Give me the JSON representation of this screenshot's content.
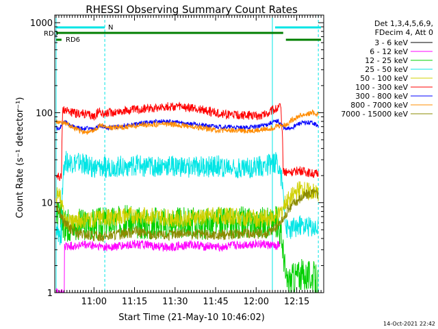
{
  "chart_data": {
    "type": "line",
    "title": "RHESSI Observing Summary Count Rates",
    "xlabel": "Start Time (21-May-10 10:46:02)",
    "ylabel": "Count Rate (s⁻¹ detector⁻¹)",
    "xscale": "time (minutes after 10:46:02)",
    "yscale": "log",
    "xlim": [
      0,
      98
    ],
    "ylim": [
      1,
      1000
    ],
    "grid": false,
    "legend_placement": "right, outside plot",
    "legend_header": [
      "Det 1,3,4,5,6,9,",
      "FDecim 4, Att 0"
    ],
    "x_ticks": [
      {
        "label": "11:00",
        "x": 14
      },
      {
        "label": "11:15",
        "x": 29
      },
      {
        "label": "11:30",
        "x": 44
      },
      {
        "label": "11:45",
        "x": 59
      },
      {
        "label": "12:00",
        "x": 74
      },
      {
        "label": "12:15",
        "x": 89
      }
    ],
    "y_ticks": [
      {
        "label": "1",
        "y": 1
      },
      {
        "label": "10",
        "y": 10
      },
      {
        "label": "100",
        "y": 100
      },
      {
        "label": "1000",
        "y": 1000
      }
    ],
    "flag_bars": [
      {
        "name": "N",
        "color": "#00e5e5",
        "segments": [
          [
            0,
            18
          ],
          [
            81,
            98
          ]
        ]
      },
      {
        "name": "RD0",
        "color": "#007f00",
        "segments": [
          [
            0,
            84
          ]
        ]
      },
      {
        "name": "RD6",
        "color": "#007f00",
        "segments": [
          [
            0,
            2
          ],
          [
            85,
            98
          ]
        ]
      }
    ],
    "markers": [
      {
        "x": 0,
        "color": "#00e5e5",
        "style": "solid"
      },
      {
        "x": 80,
        "color": "#00e5e5",
        "style": "solid"
      },
      {
        "x": 18,
        "color": "#00e5e5",
        "style": "dashed"
      },
      {
        "x": 97,
        "color": "#00e5e5",
        "style": "dashed"
      }
    ],
    "series": [
      {
        "name": "3 - 6 keV",
        "color": "#000000",
        "x": [],
        "y": []
      },
      {
        "name": "6 - 12 keV",
        "color": "#ff00ff",
        "x": [
          0,
          2,
          3,
          3.1,
          5,
          10,
          15,
          20,
          25,
          30,
          35,
          40,
          45,
          50,
          55,
          60,
          65,
          70,
          75,
          80,
          83
        ],
        "y": [
          1,
          1,
          1,
          3.2,
          3.3,
          3.4,
          3.3,
          3.2,
          3.3,
          3.5,
          3.3,
          3.2,
          3.3,
          3.4,
          3.3,
          3.2,
          3.3,
          3.4,
          3.5,
          3.3,
          3.4
        ]
      },
      {
        "name": "12 - 25 keV",
        "color": "#00d000",
        "x": [
          0,
          2,
          3,
          5,
          10,
          15,
          20,
          25,
          30,
          35,
          40,
          45,
          50,
          55,
          60,
          65,
          70,
          75,
          80,
          82,
          85,
          90,
          95,
          97
        ],
        "y": [
          7.5,
          6.5,
          5.5,
          5.6,
          5.8,
          6.0,
          6.2,
          6.3,
          6.0,
          5.8,
          6.0,
          6.1,
          6.0,
          5.8,
          5.9,
          6.0,
          6.1,
          6.0,
          5.9,
          6.2,
          1.3,
          1.6,
          1.5,
          1.3
        ]
      },
      {
        "name": "25 - 50 keV",
        "color": "#00e5e5",
        "x": [
          0,
          2,
          3,
          5,
          10,
          15,
          20,
          25,
          30,
          35,
          40,
          45,
          50,
          55,
          60,
          65,
          70,
          75,
          80,
          82,
          85,
          90,
          95,
          97
        ],
        "y": [
          4.5,
          4.4,
          29,
          28,
          27,
          24,
          25,
          25.5,
          26,
          25,
          25.5,
          25,
          24.5,
          25,
          25.5,
          25,
          24.5,
          25,
          27,
          29,
          5.0,
          5.5,
          5.3,
          5.0
        ]
      },
      {
        "name": "50 - 100 keV",
        "color": "#d0d000",
        "x": [
          0,
          2,
          3,
          5,
          10,
          15,
          20,
          25,
          30,
          35,
          40,
          45,
          50,
          55,
          60,
          65,
          70,
          75,
          80,
          82,
          85,
          90,
          95,
          97
        ],
        "y": [
          12,
          11,
          6,
          6.2,
          6.4,
          6.6,
          6.8,
          7,
          7.2,
          7,
          6.8,
          6.6,
          6.8,
          7,
          7.2,
          7,
          6.8,
          6.6,
          6.8,
          7,
          10,
          14,
          13,
          12.5
        ]
      },
      {
        "name": "100 - 300 keV",
        "color": "#ff0000",
        "x": [
          0,
          2,
          2.5,
          3,
          5,
          7,
          10,
          12,
          14,
          16,
          18,
          20,
          25,
          30,
          35,
          40,
          45,
          50,
          55,
          60,
          65,
          70,
          75,
          78,
          80,
          81,
          82,
          83,
          84,
          85,
          88,
          90,
          95,
          97
        ],
        "y": [
          20,
          19,
          110,
          108,
          103,
          98,
          97,
          94,
          90,
          104,
          96,
          100,
          104,
          108,
          113,
          117,
          116,
          113,
          106,
          98,
          94,
          93,
          92,
          98,
          107,
          110,
          112,
          118,
          23,
          22,
          22,
          23,
          21,
          21
        ]
      },
      {
        "name": "300 - 800 keV",
        "color": "#0000ff",
        "x": [
          0,
          1,
          3,
          5,
          7,
          10,
          12,
          14,
          16,
          18,
          20,
          25,
          30,
          35,
          40,
          45,
          50,
          55,
          60,
          65,
          70,
          75,
          78,
          80,
          82,
          85,
          88,
          90,
          95,
          97
        ],
        "y": [
          68,
          66,
          80,
          74,
          68,
          66,
          67,
          65,
          72,
          68,
          68,
          72,
          75,
          79,
          80,
          78,
          75,
          72,
          70,
          69,
          68,
          71,
          74,
          78,
          81,
          65,
          70,
          76,
          78,
          70
        ]
      },
      {
        "name": "800 - 7000 keV",
        "color": "#ff8c00",
        "x": [
          0,
          1,
          3,
          5,
          7,
          10,
          12,
          14,
          16,
          18,
          20,
          25,
          30,
          35,
          40,
          45,
          50,
          55,
          60,
          65,
          70,
          75,
          78,
          80,
          82,
          85,
          88,
          90,
          95,
          97
        ],
        "y": [
          80,
          78,
          77,
          72,
          66,
          62,
          60,
          63,
          72,
          70,
          68,
          69,
          72,
          74,
          75,
          73,
          70,
          67,
          64,
          63,
          63,
          64,
          66,
          68,
          72,
          73,
          86,
          92,
          100,
          95
        ]
      },
      {
        "name": "7000 - 15000 keV",
        "color": "#8b8b00",
        "x": [
          0,
          1,
          2,
          3,
          5,
          8,
          10,
          14,
          18,
          22,
          26,
          30,
          34,
          38,
          42,
          46,
          50,
          54,
          58,
          62,
          66,
          70,
          74,
          78,
          80,
          82,
          84,
          86,
          88,
          90,
          93,
          95,
          97
        ],
        "y": [
          9,
          8.5,
          7,
          6,
          5.2,
          4.5,
          4.4,
          4.3,
          4.2,
          4.4,
          4.6,
          4.8,
          4.5,
          4.3,
          4.4,
          4.6,
          4.5,
          4.4,
          4.3,
          4.4,
          4.5,
          4.6,
          4.5,
          4.6,
          5.0,
          5.5,
          6.5,
          8.5,
          10,
          11,
          12.5,
          12.8,
          12.5
        ]
      }
    ]
  },
  "footer": {
    "timestamp": "14-Oct-2021 22:42"
  }
}
